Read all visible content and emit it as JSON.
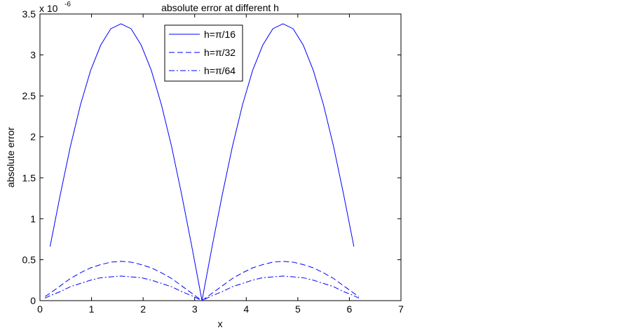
{
  "chart_data": {
    "type": "line",
    "title": "absolute error at different h",
    "x_label": "x",
    "y_label": "absolute error",
    "y_exponent": {
      "base": "x 10",
      "power": "-6"
    },
    "xlim": [
      0,
      7
    ],
    "xticks": [
      0,
      1,
      2,
      3,
      4,
      5,
      6,
      7
    ],
    "ylim": [
      0,
      3.5
    ],
    "yticks": [
      0,
      0.5,
      1,
      1.5,
      2,
      2.5,
      3,
      3.5
    ],
    "legend": "top-center",
    "series": [
      {
        "name": "h=π/16",
        "color": "#0000ff",
        "dash": "solid",
        "x": [
          0.196,
          0.393,
          0.589,
          0.785,
          0.982,
          1.178,
          1.374,
          1.571,
          1.767,
          1.963,
          2.16,
          2.356,
          2.553,
          2.749,
          2.945,
          3.142,
          3.338,
          3.534,
          3.731,
          3.927,
          4.123,
          4.32,
          4.516,
          4.712,
          4.909,
          5.105,
          5.301,
          5.498,
          5.694,
          5.89,
          6.087
        ],
        "values": [
          0.66,
          1.29,
          1.88,
          2.39,
          2.81,
          3.12,
          3.32,
          3.38,
          3.32,
          3.12,
          2.81,
          2.39,
          1.88,
          1.29,
          0.66,
          0,
          0.66,
          1.29,
          1.88,
          2.39,
          2.81,
          3.12,
          3.32,
          3.38,
          3.32,
          3.12,
          2.81,
          2.39,
          1.88,
          1.29,
          0.66
        ]
      },
      {
        "name": "h=π/32",
        "color": "#0000ff",
        "dash": "dashed",
        "x": [
          0.098,
          0.196,
          0.393,
          0.589,
          0.785,
          0.982,
          1.178,
          1.374,
          1.571,
          1.767,
          1.963,
          2.16,
          2.356,
          2.553,
          2.749,
          2.945,
          3.142,
          3.338,
          3.534,
          3.731,
          3.927,
          4.123,
          4.32,
          4.516,
          4.712,
          4.909,
          5.105,
          5.301,
          5.498,
          5.694,
          5.89,
          6.087,
          6.185
        ],
        "values": [
          0.05,
          0.09,
          0.18,
          0.27,
          0.34,
          0.4,
          0.44,
          0.47,
          0.48,
          0.47,
          0.44,
          0.4,
          0.34,
          0.27,
          0.18,
          0.09,
          0,
          0.09,
          0.18,
          0.27,
          0.34,
          0.4,
          0.44,
          0.47,
          0.48,
          0.47,
          0.44,
          0.4,
          0.34,
          0.27,
          0.18,
          0.09,
          0.05
        ]
      },
      {
        "name": "h=π/64",
        "color": "#0000ff",
        "dash": "dashdot",
        "x": [
          0.098,
          0.196,
          0.393,
          0.589,
          0.785,
          0.982,
          1.178,
          1.374,
          1.571,
          1.767,
          1.963,
          2.16,
          2.356,
          2.553,
          2.749,
          2.945,
          3.142,
          3.338,
          3.534,
          3.731,
          3.927,
          4.123,
          4.32,
          4.516,
          4.712,
          4.909,
          5.105,
          5.301,
          5.498,
          5.694,
          5.89,
          6.087,
          6.185
        ],
        "values": [
          0.03,
          0.06,
          0.11,
          0.17,
          0.21,
          0.25,
          0.28,
          0.29,
          0.3,
          0.29,
          0.28,
          0.25,
          0.21,
          0.17,
          0.11,
          0.06,
          0,
          0.06,
          0.11,
          0.17,
          0.21,
          0.25,
          0.28,
          0.29,
          0.3,
          0.29,
          0.28,
          0.25,
          0.21,
          0.17,
          0.11,
          0.06,
          0.03
        ]
      }
    ]
  }
}
